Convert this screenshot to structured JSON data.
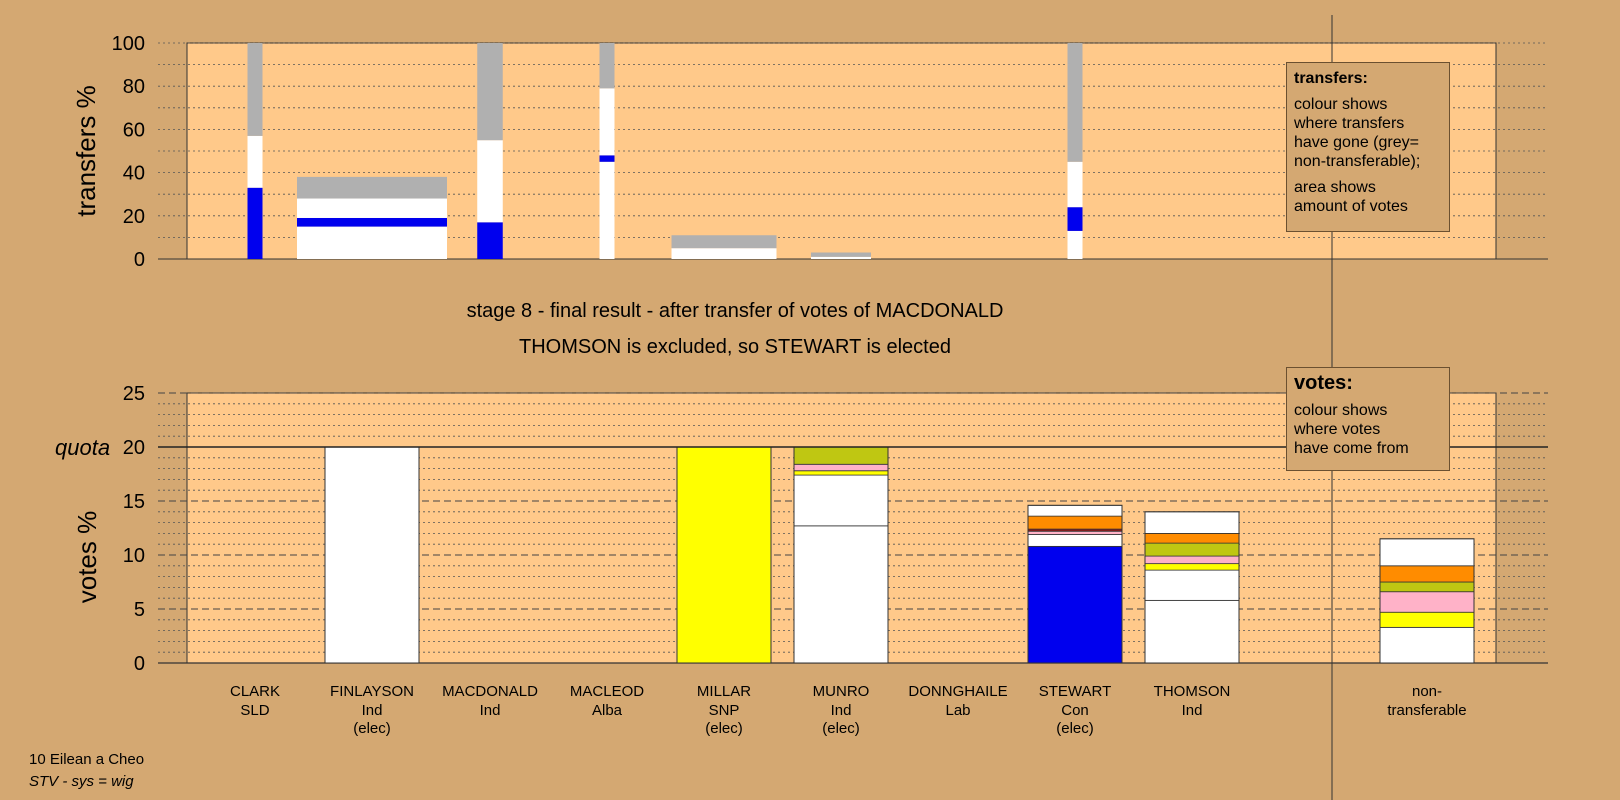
{
  "stage_title": "stage 8 - final result - after transfer of votes of MACDONALD",
  "stage_result": "THOMSON is excluded, so STEWART is elected",
  "transfers_box": {
    "heading": "transfers:",
    "lines": [
      "colour shows",
      "where transfers",
      "have gone (grey=",
      "non-transferable);"
    ],
    "lines2": [
      "area shows",
      "amount of votes"
    ]
  },
  "votes_box": {
    "heading": "votes:",
    "lines": [
      "colour shows",
      "where votes",
      "have come from"
    ]
  },
  "footer": {
    "constituency": "10 Eilean a Cheo",
    "system": "STV - sys = wig"
  },
  "colors": {
    "background": "#D4A872",
    "plot": "#FFC98A",
    "white": "#FFFFFF",
    "grey": "#B0B0B0",
    "blue": "#0000EE",
    "yellow": "#FFFF00",
    "olive": "#BFC712",
    "pink": "#FFB2C8",
    "orange": "#FF8C00",
    "darkred": "#8B1A1A"
  },
  "chart_data": [
    {
      "type": "bar",
      "name": "transfers",
      "ylabel": "transfers %",
      "ylim": [
        0,
        100
      ],
      "yticks": [
        0,
        20,
        40,
        60,
        80,
        100
      ],
      "bars": [
        {
          "category": "CLARK",
          "width_share": 0.1,
          "segments": [
            {
              "color": "blue",
              "from": 0,
              "to": 33
            },
            {
              "color": "white",
              "from": 33,
              "to": 57
            },
            {
              "color": "grey",
              "from": 57,
              "to": 100
            }
          ]
        },
        {
          "category": "FINLAYSON",
          "width_share": 1.0,
          "segments": [
            {
              "color": "white",
              "from": 0,
              "to": 15
            },
            {
              "color": "blue",
              "from": 15,
              "to": 19
            },
            {
              "color": "white",
              "from": 19,
              "to": 28
            },
            {
              "color": "grey",
              "from": 28,
              "to": 38
            }
          ]
        },
        {
          "category": "MACDONALD",
          "width_share": 0.17,
          "segments": [
            {
              "color": "blue",
              "from": 0,
              "to": 17
            },
            {
              "color": "white",
              "from": 17,
              "to": 55
            },
            {
              "color": "grey",
              "from": 55,
              "to": 100
            }
          ]
        },
        {
          "category": "MACLEOD",
          "width_share": 0.1,
          "segments": [
            {
              "color": "white",
              "from": 0,
              "to": 45
            },
            {
              "color": "blue",
              "from": 45,
              "to": 48
            },
            {
              "color": "white",
              "from": 48,
              "to": 79
            },
            {
              "color": "grey",
              "from": 79,
              "to": 100
            }
          ]
        },
        {
          "category": "MILLAR",
          "width_share": 0.7,
          "segments": [
            {
              "color": "white",
              "from": 0,
              "to": 5
            },
            {
              "color": "grey",
              "from": 5,
              "to": 11
            }
          ]
        },
        {
          "category": "MUNRO",
          "width_share": 0.4,
          "segments": [
            {
              "color": "white",
              "from": 0,
              "to": 1
            },
            {
              "color": "grey",
              "from": 1,
              "to": 3
            }
          ]
        },
        {
          "category": "DONNGHAILE",
          "width_share": 0,
          "segments": []
        },
        {
          "category": "STEWART",
          "width_share": 0.1,
          "segments": [
            {
              "color": "white",
              "from": 0,
              "to": 13
            },
            {
              "color": "blue",
              "from": 13,
              "to": 24
            },
            {
              "color": "white",
              "from": 24,
              "to": 45
            },
            {
              "color": "grey",
              "from": 45,
              "to": 100
            }
          ]
        },
        {
          "category": "THOMSON",
          "width_share": 0,
          "segments": []
        }
      ]
    },
    {
      "type": "bar",
      "name": "votes",
      "ylabel": "votes %",
      "ylim": [
        0,
        25
      ],
      "yticks": [
        0,
        5,
        10,
        15,
        20,
        25
      ],
      "quota": 20,
      "quota_label": "quota",
      "bars": [
        {
          "category": "CLARK",
          "segments": []
        },
        {
          "category": "FINLAYSON",
          "segments": [
            {
              "color": "white",
              "from": 0,
              "to": 20
            }
          ]
        },
        {
          "category": "MACDONALD",
          "segments": []
        },
        {
          "category": "MACLEOD",
          "segments": []
        },
        {
          "category": "MILLAR",
          "segments": [
            {
              "color": "yellow",
              "from": 0,
              "to": 20
            }
          ]
        },
        {
          "category": "MUNRO",
          "segments": [
            {
              "color": "white",
              "from": 0,
              "to": 12.7
            },
            {
              "color": "white",
              "from": 12.7,
              "to": 17.4
            },
            {
              "color": "yellow",
              "from": 17.4,
              "to": 17.8
            },
            {
              "color": "pink",
              "from": 17.8,
              "to": 18.4
            },
            {
              "color": "olive",
              "from": 18.4,
              "to": 20
            }
          ]
        },
        {
          "category": "DONNGHAILE",
          "segments": []
        },
        {
          "category": "STEWART",
          "segments": [
            {
              "color": "blue",
              "from": 0,
              "to": 10.8
            },
            {
              "color": "white",
              "from": 10.8,
              "to": 11.9
            },
            {
              "color": "pink",
              "from": 11.9,
              "to": 12.2
            },
            {
              "color": "darkred",
              "from": 12.2,
              "to": 12.4
            },
            {
              "color": "orange",
              "from": 12.4,
              "to": 13.6
            },
            {
              "color": "white",
              "from": 13.6,
              "to": 14.6
            }
          ]
        },
        {
          "category": "THOMSON",
          "segments": [
            {
              "color": "white",
              "from": 0,
              "to": 5.8
            },
            {
              "color": "white",
              "from": 5.8,
              "to": 8.6
            },
            {
              "color": "yellow",
              "from": 8.6,
              "to": 9.2
            },
            {
              "color": "pink",
              "from": 9.2,
              "to": 9.9
            },
            {
              "color": "olive",
              "from": 9.9,
              "to": 11.1
            },
            {
              "color": "orange",
              "from": 11.1,
              "to": 12.0
            },
            {
              "color": "white",
              "from": 12.0,
              "to": 14.0
            }
          ]
        },
        {
          "category": "non-transferable",
          "segments": [
            {
              "color": "white",
              "from": 0,
              "to": 3.3
            },
            {
              "color": "yellow",
              "from": 3.3,
              "to": 4.7
            },
            {
              "color": "pink",
              "from": 4.7,
              "to": 6.6
            },
            {
              "color": "olive",
              "from": 6.6,
              "to": 7.5
            },
            {
              "color": "orange",
              "from": 7.5,
              "to": 9.0
            },
            {
              "color": "white",
              "from": 9.0,
              "to": 11.5
            }
          ]
        }
      ]
    }
  ],
  "candidates": [
    {
      "name": "CLARK",
      "party": "SLD",
      "status": ""
    },
    {
      "name": "FINLAYSON",
      "party": "Ind",
      "status": "(elec)"
    },
    {
      "name": "MACDONALD",
      "party": "Ind",
      "status": ""
    },
    {
      "name": "MACLEOD",
      "party": "Alba",
      "status": ""
    },
    {
      "name": "MILLAR",
      "party": "SNP",
      "status": "(elec)"
    },
    {
      "name": "MUNRO",
      "party": "Ind",
      "status": "(elec)"
    },
    {
      "name": "DONNGHAILE",
      "party": "Lab",
      "status": ""
    },
    {
      "name": "STEWART",
      "party": "Con",
      "status": "(elec)"
    },
    {
      "name": "THOMSON",
      "party": "Ind",
      "status": ""
    },
    {
      "name": "non-",
      "party": "transferable",
      "status": ""
    }
  ]
}
